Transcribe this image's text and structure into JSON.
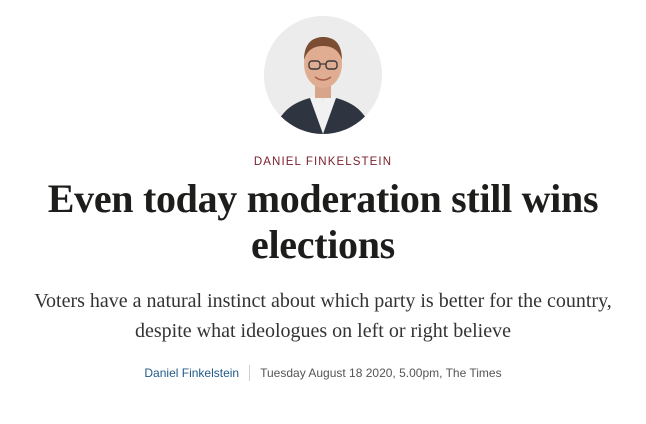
{
  "article": {
    "author_kicker": "DANIEL FINKELSTEIN",
    "headline": "Even today moderation still wins elections",
    "standfirst": "Voters have a natural instinct about which party is better for the country, despite what ideologues on left or right believe",
    "byline": {
      "author": "Daniel Finkelstein",
      "dateline": "Tuesday August 18 2020, 5.00pm, The Times"
    }
  },
  "colors": {
    "kicker": "#7a1d2c",
    "byline_link": "#1f5a8a",
    "headline": "#1d1d1b"
  },
  "icons": {
    "author_photo": "author-portrait-avatar"
  }
}
